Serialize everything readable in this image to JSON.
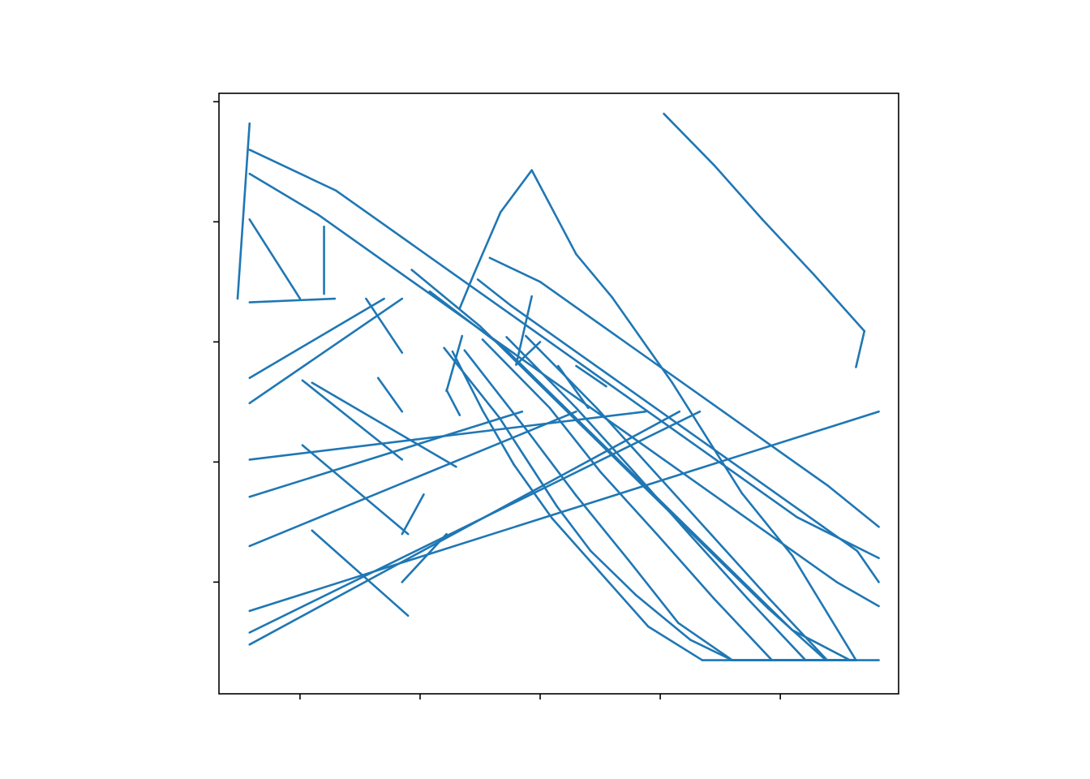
{
  "chart_data": {
    "type": "line",
    "title": "",
    "xlabel": "",
    "ylabel": "",
    "xlim": [
      -0.675,
      4.985
    ],
    "ylim": [
      -0.93,
      4.07
    ],
    "xticks": [
      0,
      1,
      2,
      3,
      4
    ],
    "yticks": [
      0,
      1,
      2,
      3,
      4
    ],
    "tick_labels_visible": false,
    "grid": false,
    "legend": "none",
    "color": "#1f77b4",
    "series": [
      {
        "x": [
          [
            -0.42,
            0.85
          ],
          [
            -0.42,
            0.7
          ],
          [
            -0.42,
            0.29
          ],
          [
            -0.42,
            0.0
          ],
          [
            -0.42,
            -0.52
          ],
          [
            -0.42,
            2.88
          ],
          [
            -0.42,
            1.85
          ],
          [
            -0.42,
            2.3
          ],
          [
            -0.42,
            3.33
          ],
          [
            -0.42,
            3.16
          ],
          [
            -0.42,
            4.82
          ],
          [
            0.02,
            0.85
          ],
          [
            0.02,
            0.9
          ],
          [
            0.1,
            0.9
          ],
          [
            0.1,
            1.3
          ],
          [
            0.2,
            0.2
          ],
          [
            0.85,
            1.22
          ],
          [
            0.85,
            1.03
          ],
          [
            0.85,
            0.65
          ],
          [
            0.85,
            0.55
          ],
          [
            1.35,
            1.22
          ],
          [
            1.22,
            1.33
          ],
          [
            1.93,
            1.67
          ],
          [
            1.67,
            1.45
          ],
          [
            1.45,
            1.33
          ],
          [
            1.93,
            2.3
          ],
          [
            2.3,
            2.6
          ],
          [
            2.6,
            3.1
          ],
          [
            3.1,
            3.68
          ],
          [
            3.68,
            4.1
          ],
          [
            4.1,
            4.63
          ],
          [
            4.63,
            4.82
          ],
          [
            1.93,
            1.8
          ],
          [
            2.0,
            1.8
          ],
          [
            2.4,
            2.15
          ],
          [
            2.55,
            2.3
          ],
          [
            3.03,
            3.45
          ],
          [
            3.45,
            3.85
          ],
          [
            3.85,
            4.28
          ],
          [
            4.28,
            4.7
          ],
          [
            4.7,
            4.63
          ],
          [
            1.2,
            1.66
          ],
          [
            1.66,
            1.9
          ],
          [
            1.9,
            2.14
          ],
          [
            2.14,
            2.42
          ],
          [
            2.42,
            2.8
          ],
          [
            2.8,
            3.25
          ],
          [
            3.25,
            3.6
          ],
          [
            3.6,
            4.05
          ],
          [
            4.05,
            4.43
          ],
          [
            4.43,
            4.63
          ],
          [
            1.27,
            1.52
          ],
          [
            1.52,
            1.78
          ],
          [
            1.78,
            2.1
          ],
          [
            2.1,
            2.5
          ],
          [
            2.5,
            2.9
          ],
          [
            2.9,
            3.35
          ],
          [
            3.35,
            3.75
          ],
          [
            3.75,
            4.2
          ],
          [
            4.2,
            4.63
          ],
          [
            1.37,
            1.9
          ],
          [
            1.9,
            2.3
          ],
          [
            2.3,
            2.73
          ],
          [
            2.73,
            3.15
          ],
          [
            3.15,
            3.6
          ],
          [
            3.6,
            4.05
          ],
          [
            4.05,
            4.63
          ],
          [
            1.52,
            2.08
          ],
          [
            2.08,
            2.5
          ],
          [
            2.5,
            2.98
          ],
          [
            2.98,
            3.45
          ],
          [
            3.45,
            3.93
          ],
          [
            3.93,
            4.48
          ],
          [
            4.48,
            4.63
          ],
          [
            1.72,
            2.3
          ],
          [
            2.3,
            2.78
          ],
          [
            2.78,
            3.25
          ],
          [
            3.25,
            3.73
          ],
          [
            3.73,
            4.21
          ],
          [
            4.21,
            4.63
          ],
          [
            1.88,
            2.47
          ],
          [
            2.47,
            2.95
          ],
          [
            2.95,
            3.43
          ],
          [
            3.43,
            3.91
          ],
          [
            3.91,
            4.39
          ],
          [
            4.39,
            4.63
          ],
          [
            1.08,
            1.7
          ],
          [
            1.7,
            2.18
          ],
          [
            2.18,
            2.66
          ],
          [
            2.66,
            3.14
          ],
          [
            3.14,
            3.62
          ],
          [
            3.62,
            4.1
          ],
          [
            4.1,
            4.58
          ],
          [
            4.58,
            4.63
          ],
          [
            0.93,
            1.5
          ],
          [
            1.5,
            1.98
          ],
          [
            1.98,
            2.46
          ],
          [
            2.46,
            2.94
          ],
          [
            2.94,
            3.42
          ],
          [
            3.42,
            3.9
          ],
          [
            3.9,
            4.38
          ],
          [
            4.38,
            4.63
          ],
          [
            -0.42,
            0.15
          ],
          [
            0.15,
            0.63
          ],
          [
            0.63,
            1.11
          ],
          [
            1.11,
            1.59
          ],
          [
            1.59,
            2.07
          ],
          [
            2.07,
            2.55
          ],
          [
            2.55,
            3.03
          ],
          [
            3.03,
            3.51
          ],
          [
            3.51,
            3.99
          ],
          [
            3.99,
            4.47
          ],
          [
            4.47,
            4.82
          ],
          [
            -0.42,
            0.3
          ],
          [
            0.3,
            0.78
          ],
          [
            0.78,
            1.26
          ],
          [
            1.26,
            1.74
          ],
          [
            1.74,
            2.22
          ],
          [
            2.22,
            2.7
          ],
          [
            2.7,
            3.18
          ],
          [
            3.18,
            3.66
          ],
          [
            3.66,
            4.14
          ],
          [
            4.14,
            4.82
          ],
          [
            1.48,
            1.76
          ],
          [
            1.76,
            2.24
          ],
          [
            2.24,
            2.72
          ],
          [
            2.72,
            3.2
          ],
          [
            3.2,
            3.68
          ],
          [
            3.68,
            4.16
          ],
          [
            4.16,
            4.64
          ],
          [
            4.64,
            4.82
          ],
          [
            1.58,
            2.0
          ],
          [
            2.0,
            2.48
          ],
          [
            2.48,
            2.96
          ],
          [
            2.96,
            3.44
          ],
          [
            3.44,
            3.92
          ],
          [
            3.92,
            4.4
          ],
          [
            4.4,
            4.82
          ]
        ],
        "y": [
          [
            1.49,
            2.36
          ],
          [
            1.7,
            2.36
          ],
          [
            2.33,
            2.36
          ],
          [
            3.02,
            2.36
          ],
          [
            3.82,
            2.36
          ],
          [
            1.02,
            1.42
          ],
          [
            0.71,
            1.42
          ],
          [
            0.3,
            1.42
          ],
          [
            -0.42,
            1.42
          ],
          [
            -0.52,
            1.42
          ],
          [
            -0.24,
            1.42
          ],
          [
            1.68,
            1.02
          ],
          [
            1.14,
            0.4
          ],
          [
            0.43,
            -0.28
          ],
          [
            1.66,
            0.96
          ],
          [
            2.96,
            2.4
          ],
          [
            0.0,
            0.4
          ],
          [
            0.4,
            0.73
          ],
          [
            1.42,
            1.7
          ],
          [
            1.91,
            2.36
          ],
          [
            2.05,
            1.59
          ],
          [
            1.6,
            1.39
          ],
          [
            3.43,
            3.08
          ],
          [
            3.08,
            2.57
          ],
          [
            2.57,
            2.28
          ],
          [
            3.43,
            2.73
          ],
          [
            2.73,
            2.37
          ],
          [
            2.37,
            1.66
          ],
          [
            1.66,
            0.74
          ],
          [
            0.74,
            0.22
          ],
          [
            0.22,
            -0.65
          ],
          [
            -0.65,
            -0.65
          ],
          [
            2.38,
            1.81
          ],
          [
            2.0,
            1.81
          ],
          [
            1.45,
            1.8
          ],
          [
            1.63,
            1.8
          ],
          [
            3.9,
            3.47
          ],
          [
            3.47,
            3.02
          ],
          [
            3.02,
            2.56
          ],
          [
            2.56,
            2.09
          ],
          [
            2.09,
            1.79
          ],
          [
            1.95,
            1.37
          ],
          [
            1.37,
            1.0
          ],
          [
            1.0,
            0.63
          ],
          [
            0.63,
            0.26
          ],
          [
            0.26,
            -0.11
          ],
          [
            -0.11,
            -0.48
          ],
          [
            -0.48,
            -0.65
          ],
          [
            -0.65,
            -0.65
          ],
          [
            -0.65,
            -0.65
          ],
          [
            -0.65,
            -0.65
          ],
          [
            1.92,
            1.43
          ],
          [
            1.43,
            0.98
          ],
          [
            0.98,
            0.53
          ],
          [
            0.53,
            0.08
          ],
          [
            0.08,
            -0.37
          ],
          [
            -0.37,
            -0.65
          ],
          [
            -0.65,
            -0.65
          ],
          [
            -0.65,
            -0.65
          ],
          [
            -0.65,
            -0.65
          ],
          [
            1.93,
            1.25
          ],
          [
            1.25,
            0.72
          ],
          [
            0.72,
            0.19
          ],
          [
            0.19,
            -0.34
          ],
          [
            -0.34,
            -0.65
          ],
          [
            -0.65,
            -0.65
          ],
          [
            -0.65,
            -0.65
          ],
          [
            2.02,
            1.45
          ],
          [
            1.45,
            0.92
          ],
          [
            0.92,
            0.39
          ],
          [
            0.39,
            -0.14
          ],
          [
            -0.14,
            -0.65
          ],
          [
            -0.65,
            -0.65
          ],
          [
            -0.65,
            -0.65
          ],
          [
            2.04,
            1.45
          ],
          [
            1.45,
            0.92
          ],
          [
            0.92,
            0.39
          ],
          [
            0.39,
            -0.14
          ],
          [
            -0.14,
            -0.65
          ],
          [
            -0.65,
            -0.65
          ],
          [
            2.05,
            1.45
          ],
          [
            1.45,
            0.92
          ],
          [
            0.92,
            0.39
          ],
          [
            0.39,
            -0.14
          ],
          [
            -0.14,
            -0.65
          ],
          [
            -0.65,
            -0.65
          ],
          [
            2.42,
            1.95
          ],
          [
            1.95,
            1.48
          ],
          [
            1.48,
            1.01
          ],
          [
            1.01,
            0.54
          ],
          [
            0.54,
            0.07
          ],
          [
            0.07,
            -0.4
          ],
          [
            -0.4,
            -0.65
          ],
          [
            -0.65,
            -0.65
          ],
          [
            2.6,
            2.13
          ],
          [
            2.13,
            1.66
          ],
          [
            1.66,
            1.19
          ],
          [
            1.19,
            0.72
          ],
          [
            0.72,
            0.25
          ],
          [
            0.25,
            -0.22
          ],
          [
            -0.22,
            -0.65
          ],
          [
            -0.65,
            -0.65
          ],
          [
            3.4,
            3.06
          ],
          [
            3.06,
            2.72
          ],
          [
            2.72,
            2.38
          ],
          [
            2.38,
            2.04
          ],
          [
            2.04,
            1.7
          ],
          [
            1.7,
            1.36
          ],
          [
            1.36,
            1.02
          ],
          [
            1.02,
            0.68
          ],
          [
            0.68,
            0.34
          ],
          [
            0.34,
            0.0
          ],
          [
            0.0,
            -0.2
          ],
          [
            3.6,
            3.26
          ],
          [
            3.26,
            2.92
          ],
          [
            2.92,
            2.58
          ],
          [
            2.58,
            2.24
          ],
          [
            2.24,
            1.9
          ],
          [
            1.9,
            1.56
          ],
          [
            1.56,
            1.22
          ],
          [
            1.22,
            0.88
          ],
          [
            0.88,
            0.54
          ],
          [
            0.54,
            0.2
          ],
          [
            2.52,
            2.3
          ],
          [
            2.3,
            1.96
          ],
          [
            1.96,
            1.62
          ],
          [
            1.62,
            1.28
          ],
          [
            1.28,
            0.94
          ],
          [
            0.94,
            0.6
          ],
          [
            0.6,
            0.26
          ],
          [
            0.26,
            0.0
          ],
          [
            2.7,
            2.5
          ],
          [
            2.5,
            2.16
          ],
          [
            2.16,
            1.82
          ],
          [
            1.82,
            1.48
          ],
          [
            1.48,
            1.14
          ],
          [
            1.14,
            0.8
          ],
          [
            0.8,
            0.46
          ]
        ]
      }
    ]
  }
}
